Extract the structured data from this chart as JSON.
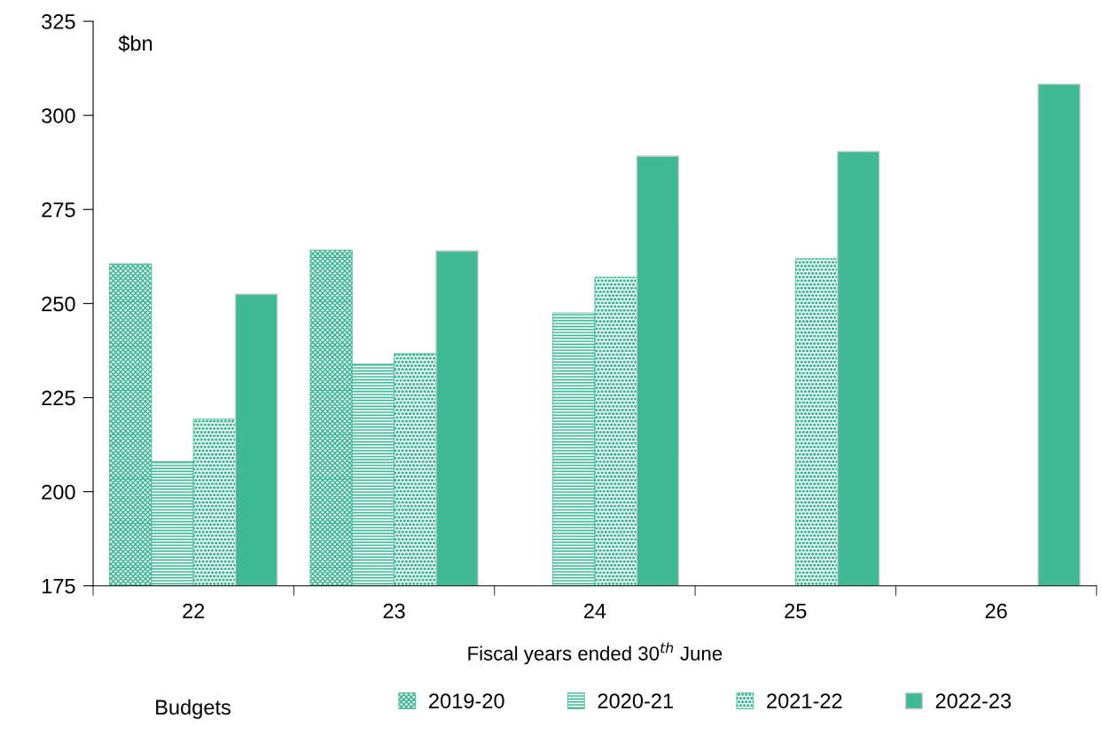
{
  "chart_data": {
    "type": "bar",
    "categories": [
      "22",
      "23",
      "24",
      "25",
      "26"
    ],
    "xlabel": "Fiscal years ended 30$^{th}$ June",
    "ylabel": "$bn",
    "legend_title": "Budgets",
    "legend": "bottom",
    "ylim": [
      175,
      325
    ],
    "yticks": [
      175,
      200,
      225,
      250,
      275,
      300,
      325
    ],
    "grid": false,
    "series": [
      {
        "name": "2019-20",
        "color": "#41b995",
        "values": [
          260.5,
          264.2,
          null,
          null,
          null
        ]
      },
      {
        "name": "2020-21",
        "color": "#41b995",
        "values": [
          208,
          233.9,
          247.5,
          null,
          null
        ]
      },
      {
        "name": "2021-22",
        "color": "#41b995",
        "values": [
          219.3,
          236.7,
          257,
          261.9,
          null
        ]
      },
      {
        "name": "2022-23",
        "color": "#41b995",
        "values": [
          252.5,
          264,
          289.2,
          290.4,
          308.3
        ]
      }
    ]
  }
}
